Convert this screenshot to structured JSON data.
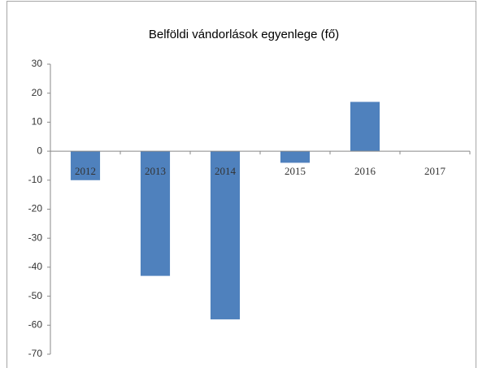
{
  "chart_data": {
    "type": "bar",
    "title": "Belföldi vándorlások egyenlege (fő)",
    "categories": [
      "2012",
      "2013",
      "2014",
      "2015",
      "2016",
      "2017"
    ],
    "values": [
      -10,
      -43,
      -58,
      -4,
      17,
      0
    ],
    "color": "#4f81bd",
    "ylim": [
      -70,
      30
    ],
    "yticks": [
      -70,
      -60,
      -50,
      -40,
      -30,
      -20,
      -10,
      0,
      10,
      20,
      30
    ],
    "grid": false
  }
}
